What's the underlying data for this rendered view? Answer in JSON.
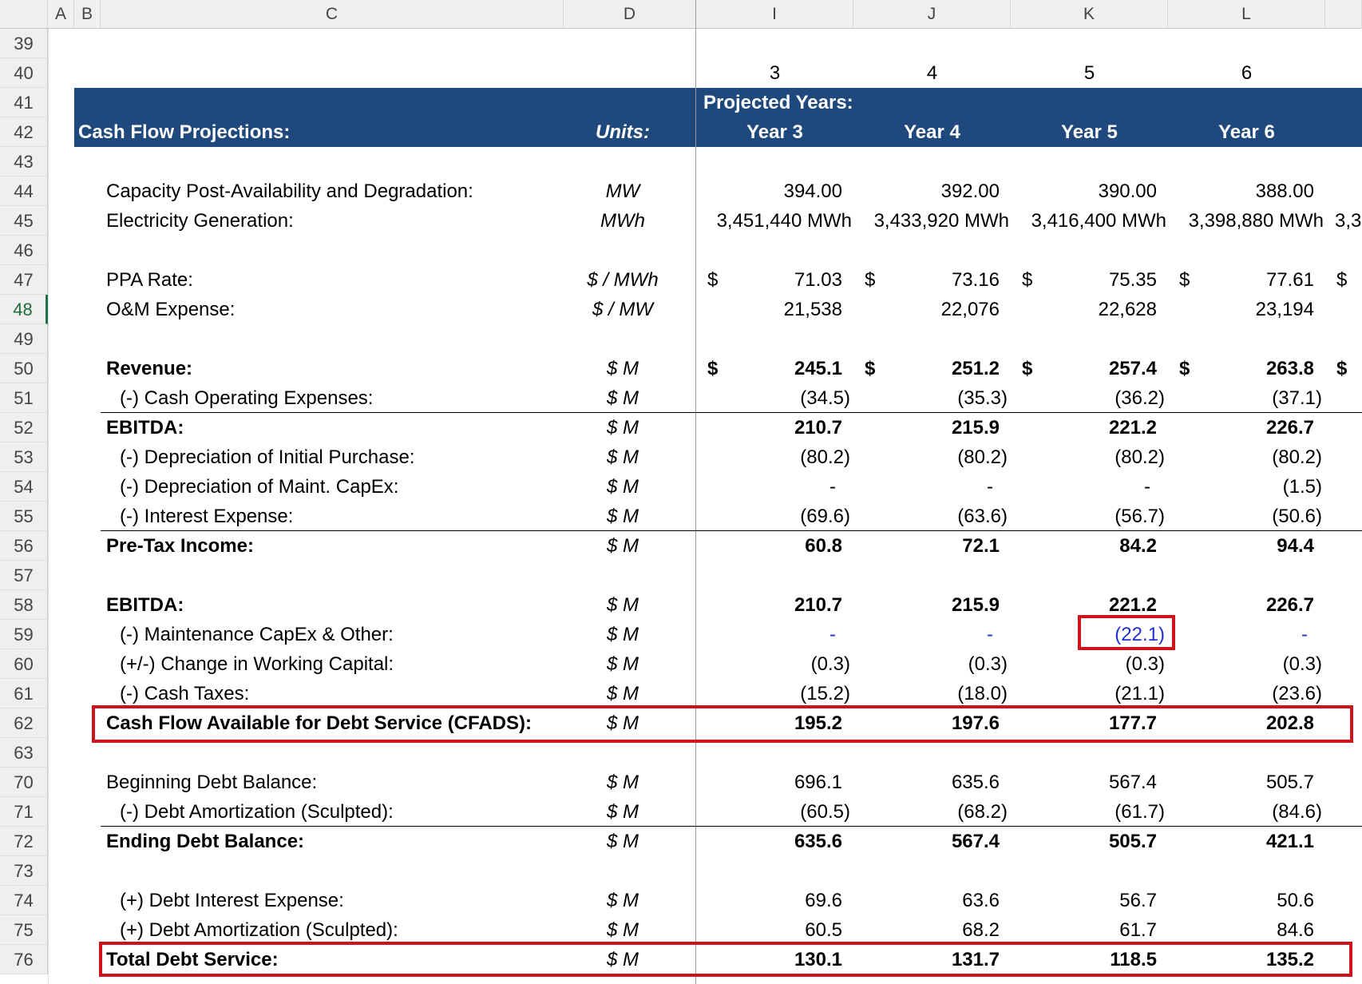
{
  "columns": [
    "A",
    "B",
    "C",
    "D",
    "I",
    "J",
    "K",
    "L"
  ],
  "active_row": "48",
  "header": {
    "period_numbers": [
      "3",
      "4",
      "5",
      "6"
    ],
    "projected_label": "Projected Years:",
    "title": "Cash Flow Projections:",
    "units_label": "Units:",
    "years": [
      "Year 3",
      "Year 4",
      "Year 5",
      "Year 6"
    ]
  },
  "rows": [
    {
      "row": "39"
    },
    {
      "row": "40"
    },
    {
      "row": "41"
    },
    {
      "row": "42"
    },
    {
      "row": "43"
    },
    {
      "row": "44",
      "label": "Capacity Post-Availability and Degradation:",
      "units": "MW",
      "values": [
        "394.00",
        "392.00",
        "390.00",
        "388.00"
      ]
    },
    {
      "row": "45",
      "label": "Electricity Generation:",
      "units": "MWh",
      "values": [
        "3,451,440 MWh",
        "3,433,920 MWh",
        "3,416,400 MWh",
        "3,398,880 MWh"
      ],
      "overflow": "3,3"
    },
    {
      "row": "46"
    },
    {
      "row": "47",
      "label": "PPA Rate:",
      "units": "$ / MWh",
      "dollar": true,
      "values": [
        "71.03",
        "73.16",
        "75.35",
        "77.61"
      ]
    },
    {
      "row": "48",
      "label": "O&M Expense:",
      "units": "$ / MW",
      "values": [
        "21,538",
        "22,076",
        "22,628",
        "23,194"
      ]
    },
    {
      "row": "49"
    },
    {
      "row": "50",
      "label": "Revenue:",
      "units": "$ M",
      "bold": true,
      "dollar": true,
      "values": [
        "245.1",
        "251.2",
        "257.4",
        "263.8"
      ]
    },
    {
      "row": "51",
      "label": "(-) Cash Operating Expenses:",
      "units": "$ M",
      "indent": true,
      "values": [
        "(34.5)",
        "(35.3)",
        "(36.2)",
        "(37.1)"
      ]
    },
    {
      "row": "52",
      "label": "EBITDA:",
      "units": "$ M",
      "bold": true,
      "values": [
        "210.7",
        "215.9",
        "221.2",
        "226.7"
      ]
    },
    {
      "row": "53",
      "label": "(-) Depreciation of Initial Purchase:",
      "units": "$ M",
      "indent": true,
      "values": [
        "(80.2)",
        "(80.2)",
        "(80.2)",
        "(80.2)"
      ]
    },
    {
      "row": "54",
      "label": "(-) Depreciation of Maint. CapEx:",
      "units": "$ M",
      "indent": true,
      "values": [
        "-",
        "-",
        "-",
        "(1.5)"
      ]
    },
    {
      "row": "55",
      "label": "(-) Interest Expense:",
      "units": "$ M",
      "indent": true,
      "values": [
        "(69.6)",
        "(63.6)",
        "(56.7)",
        "(50.6)"
      ]
    },
    {
      "row": "56",
      "label": "Pre-Tax Income:",
      "units": "$ M",
      "bold": true,
      "values": [
        "60.8",
        "72.1",
        "84.2",
        "94.4"
      ]
    },
    {
      "row": "57"
    },
    {
      "row": "58",
      "label": "EBITDA:",
      "units": "$ M",
      "bold": true,
      "values": [
        "210.7",
        "215.9",
        "221.2",
        "226.7"
      ]
    },
    {
      "row": "59",
      "label": "(-) Maintenance CapEx & Other:",
      "units": "$ M",
      "indent": true,
      "blue": true,
      "values": [
        "-",
        "-",
        "(22.1)",
        "-"
      ]
    },
    {
      "row": "60",
      "label": "(+/-) Change in Working Capital:",
      "units": "$ M",
      "indent": true,
      "values": [
        "(0.3)",
        "(0.3)",
        "(0.3)",
        "(0.3)"
      ]
    },
    {
      "row": "61",
      "label": "(-) Cash Taxes:",
      "units": "$ M",
      "indent": true,
      "values": [
        "(15.2)",
        "(18.0)",
        "(21.1)",
        "(23.6)"
      ]
    },
    {
      "row": "62",
      "label": "Cash Flow Available for Debt Service (CFADS):",
      "units": "$ M",
      "bold": true,
      "values": [
        "195.2",
        "197.6",
        "177.7",
        "202.8"
      ]
    },
    {
      "row": "63"
    },
    {
      "row": "70",
      "label": "Beginning Debt Balance:",
      "units": "$ M",
      "values": [
        "696.1",
        "635.6",
        "567.4",
        "505.7"
      ]
    },
    {
      "row": "71",
      "label": "(-) Debt Amortization (Sculpted):",
      "units": "$ M",
      "indent": true,
      "values": [
        "(60.5)",
        "(68.2)",
        "(61.7)",
        "(84.6)"
      ]
    },
    {
      "row": "72",
      "label": "Ending Debt Balance:",
      "units": "$ M",
      "bold": true,
      "values": [
        "635.6",
        "567.4",
        "505.7",
        "421.1"
      ]
    },
    {
      "row": "73"
    },
    {
      "row": "74",
      "label": "(+) Debt Interest Expense:",
      "units": "$ M",
      "indent": true,
      "values": [
        "69.6",
        "63.6",
        "56.7",
        "50.6"
      ]
    },
    {
      "row": "75",
      "label": "(+) Debt Amortization (Sculpted):",
      "units": "$ M",
      "indent": true,
      "values": [
        "60.5",
        "68.2",
        "61.7",
        "84.6"
      ]
    },
    {
      "row": "76",
      "label": "Total Debt Service:",
      "units": "$ M",
      "bold": true,
      "values": [
        "130.1",
        "131.7",
        "118.5",
        "135.2"
      ]
    }
  ],
  "currency_symbol": "$",
  "highlight_color": "#d0121b",
  "header_color": "#1f497d"
}
